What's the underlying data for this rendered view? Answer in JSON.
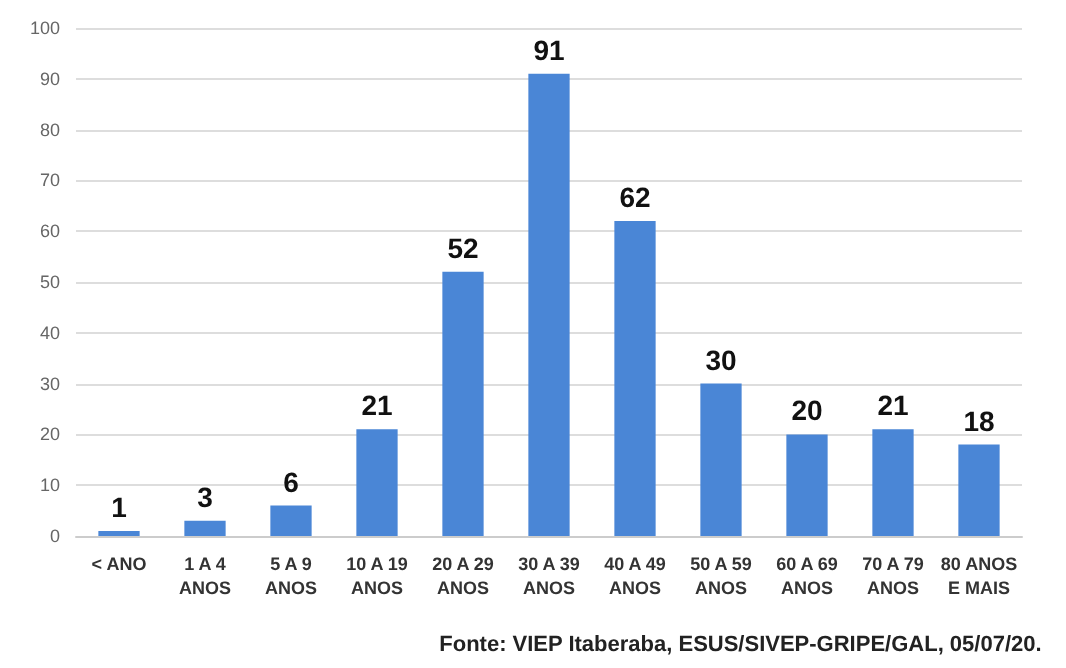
{
  "chart_data": {
    "type": "bar",
    "categories": [
      "< ANO",
      "1 A 4\nANOS",
      "5 A 9\nANOS",
      "10 A 19\nANOS",
      "20 A 29\nANOS",
      "30 A 39\nANOS",
      "40 A 49\nANOS",
      "50 A 59\nANOS",
      "60 A 69\nANOS",
      "70 A 79\nANOS",
      "80 ANOS\nE MAIS"
    ],
    "values": [
      1,
      3,
      6,
      21,
      52,
      91,
      62,
      30,
      20,
      21,
      18
    ],
    "color": "#4a86d6",
    "ylim": [
      0,
      100
    ],
    "yticks": [
      0,
      10,
      20,
      30,
      40,
      50,
      60,
      70,
      80,
      90,
      100
    ],
    "grid": "y",
    "data_labels": true,
    "annotations": [
      "Fonte: VIEP Itaberaba, ESUS/SIVEP-GRIPE/GAL, 05/07/20."
    ]
  }
}
